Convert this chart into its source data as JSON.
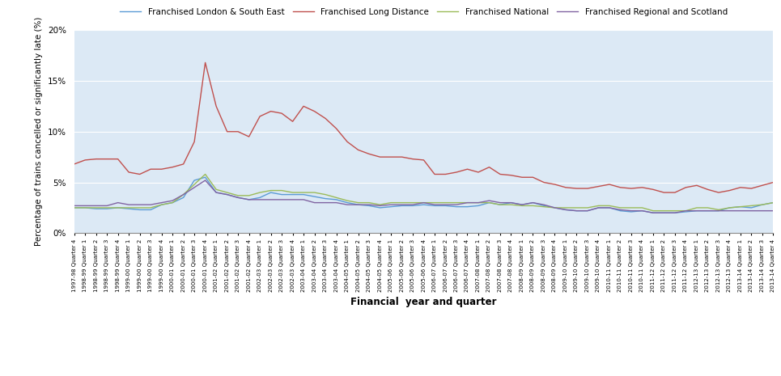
{
  "title": "",
  "xlabel": "Financial  year and quarter",
  "ylabel": "Percentage of trains cancelled or significantly late (%)",
  "background_color": "#dce9f5",
  "ylim": [
    0,
    0.2
  ],
  "yticks": [
    0,
    0.05,
    0.1,
    0.15,
    0.2
  ],
  "ytick_labels": [
    "0%",
    "5%",
    "10%",
    "15%",
    "20%"
  ],
  "legend": [
    "Franchised London & South East",
    "Franchised Long Distance",
    "Franchised National",
    "Franchised Regional and Scotland"
  ],
  "colors": [
    "#5b9bd5",
    "#c0504d",
    "#9bbb59",
    "#8064a2"
  ],
  "x_labels": [
    "1997-98 Quarter 4",
    "1998-99 Quarter 1",
    "1998-99 Quarter 2",
    "1998-99 Quarter 3",
    "1998-99 Quarter 4",
    "1999-00 Quarter 1",
    "1999-00 Quarter 2",
    "1999-00 Quarter 3",
    "1999-00 Quarter 4",
    "2000-01 Quarter 1",
    "2000-01 Quarter 2",
    "2000-01 Quarter 3",
    "2000-01 Quarter 4",
    "2001-02 Quarter 1",
    "2001-02 Quarter 2",
    "2001-02 Quarter 3",
    "2001-02 Quarter 4",
    "2002-03 Quarter 1",
    "2002-03 Quarter 2",
    "2002-03 Quarter 3",
    "2002-03 Quarter 4",
    "2003-04 Quarter 1",
    "2003-04 Quarter 2",
    "2003-04 Quarter 3",
    "2003-04 Quarter 4",
    "2004-05 Quarter 1",
    "2004-05 Quarter 2",
    "2004-05 Quarter 3",
    "2004-05 Quarter 4",
    "2005-06 Quarter 1",
    "2005-06 Quarter 2",
    "2005-06 Quarter 3",
    "2005-06 Quarter 4",
    "2006-07 Quarter 1",
    "2006-07 Quarter 2",
    "2006-07 Quarter 3",
    "2006-07 Quarter 4",
    "2007-08 Quarter 1",
    "2007-08 Quarter 2",
    "2007-08 Quarter 3",
    "2007-08 Quarter 4",
    "2008-09 Quarter 1",
    "2008-09 Quarter 2",
    "2008-09 Quarter 3",
    "2008-09 Quarter 4",
    "2009-10 Quarter 1",
    "2009-10 Quarter 2",
    "2009-10 Quarter 3",
    "2009-10 Quarter 4",
    "2010-11 Quarter 1",
    "2010-11 Quarter 2",
    "2010-11 Quarter 3",
    "2010-11 Quarter 4",
    "2011-12 Quarter 1",
    "2011-12 Quarter 2",
    "2011-12 Quarter 3",
    "2011-12 Quarter 4",
    "2012-13 Quarter 1",
    "2012-13 Quarter 2",
    "2012-13 Quarter 3",
    "2012-13 Quarter 4",
    "2013-14 Quarter 1",
    "2013-14 Quarter 2",
    "2013-14 Quarter 3",
    "2013-14 Quarter 4"
  ],
  "london_se": [
    0.025,
    0.025,
    0.024,
    0.024,
    0.025,
    0.024,
    0.023,
    0.023,
    0.028,
    0.03,
    0.035,
    0.052,
    0.055,
    0.04,
    0.038,
    0.035,
    0.033,
    0.035,
    0.04,
    0.038,
    0.038,
    0.038,
    0.036,
    0.034,
    0.033,
    0.03,
    0.028,
    0.027,
    0.025,
    0.026,
    0.027,
    0.027,
    0.028,
    0.027,
    0.027,
    0.026,
    0.026,
    0.027,
    0.03,
    0.028,
    0.03,
    0.028,
    0.03,
    0.027,
    0.025,
    0.023,
    0.022,
    0.022,
    0.025,
    0.025,
    0.022,
    0.021,
    0.022,
    0.02,
    0.02,
    0.02,
    0.021,
    0.022,
    0.022,
    0.022,
    0.025,
    0.026,
    0.025,
    0.028,
    0.03
  ],
  "long_distance": [
    0.068,
    0.072,
    0.073,
    0.073,
    0.073,
    0.06,
    0.058,
    0.063,
    0.063,
    0.065,
    0.068,
    0.09,
    0.168,
    0.125,
    0.1,
    0.1,
    0.095,
    0.115,
    0.12,
    0.118,
    0.11,
    0.125,
    0.12,
    0.113,
    0.103,
    0.09,
    0.082,
    0.078,
    0.075,
    0.075,
    0.075,
    0.073,
    0.072,
    0.058,
    0.058,
    0.06,
    0.063,
    0.06,
    0.065,
    0.058,
    0.057,
    0.055,
    0.055,
    0.05,
    0.048,
    0.045,
    0.044,
    0.044,
    0.046,
    0.048,
    0.045,
    0.044,
    0.045,
    0.043,
    0.04,
    0.04,
    0.045,
    0.047,
    0.043,
    0.04,
    0.042,
    0.045,
    0.044,
    0.047,
    0.05
  ],
  "national": [
    0.025,
    0.025,
    0.025,
    0.025,
    0.025,
    0.025,
    0.025,
    0.025,
    0.028,
    0.03,
    0.038,
    0.048,
    0.058,
    0.043,
    0.04,
    0.037,
    0.037,
    0.04,
    0.042,
    0.042,
    0.04,
    0.04,
    0.04,
    0.038,
    0.035,
    0.032,
    0.03,
    0.03,
    0.028,
    0.03,
    0.03,
    0.03,
    0.03,
    0.03,
    0.03,
    0.03,
    0.03,
    0.03,
    0.03,
    0.028,
    0.028,
    0.027,
    0.027,
    0.026,
    0.025,
    0.025,
    0.025,
    0.025,
    0.027,
    0.027,
    0.025,
    0.025,
    0.025,
    0.022,
    0.022,
    0.022,
    0.022,
    0.025,
    0.025,
    0.023,
    0.025,
    0.026,
    0.027,
    0.028,
    0.03
  ],
  "regional_scotland": [
    0.027,
    0.027,
    0.027,
    0.027,
    0.03,
    0.028,
    0.028,
    0.028,
    0.03,
    0.032,
    0.038,
    0.045,
    0.052,
    0.04,
    0.038,
    0.035,
    0.033,
    0.033,
    0.033,
    0.033,
    0.033,
    0.033,
    0.03,
    0.03,
    0.03,
    0.028,
    0.028,
    0.028,
    0.027,
    0.028,
    0.028,
    0.028,
    0.03,
    0.028,
    0.028,
    0.028,
    0.03,
    0.03,
    0.032,
    0.03,
    0.03,
    0.028,
    0.03,
    0.028,
    0.025,
    0.023,
    0.022,
    0.022,
    0.025,
    0.025,
    0.023,
    0.022,
    0.022,
    0.02,
    0.02,
    0.02,
    0.022,
    0.022,
    0.022,
    0.022,
    0.022,
    0.022,
    0.022,
    0.022,
    0.022
  ],
  "figsize": [
    9.65,
    4.65
  ],
  "dpi": 100
}
